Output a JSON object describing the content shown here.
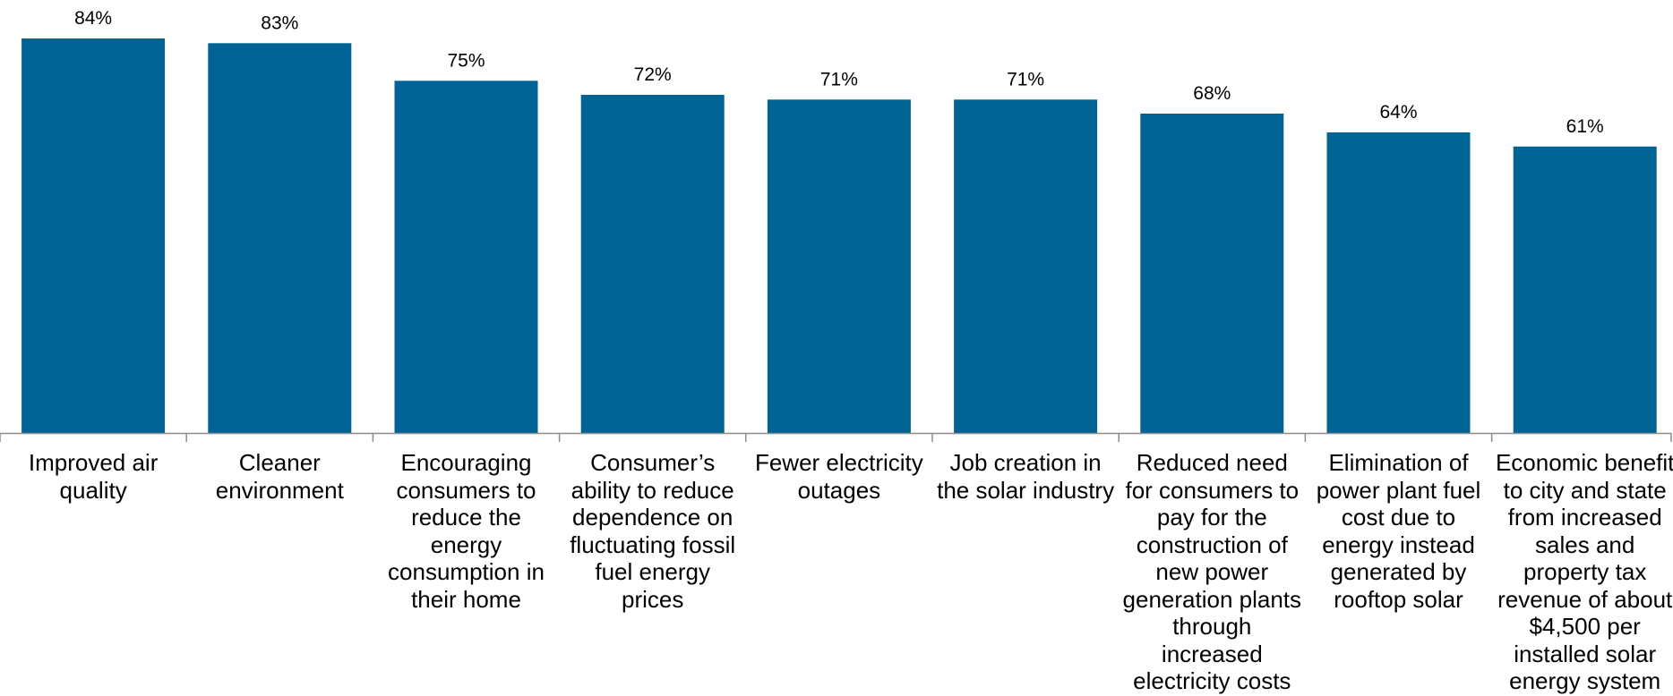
{
  "chart_data": {
    "type": "bar",
    "title": "",
    "xlabel": "",
    "ylabel": "",
    "ylim": [
      0,
      84
    ],
    "grid": false,
    "categories": [
      "Improved air\nquality",
      "Cleaner\nenvironment",
      "Encouraging\nconsumers to\nreduce the\nenergy\nconsumption in\ntheir home",
      "Consumer’s\nability to reduce\ndependence on\nfluctuating fossil\nfuel energy\nprices",
      "Fewer electricity\noutages",
      "Job creation in\nthe solar industry",
      "Reduced need\nfor consumers to\npay for the\nconstruction of\nnew power\ngeneration plants\nthrough\nincreased\nelectricity costs",
      "Elimination of\npower plant fuel\ncost due to\nenergy instead\ngenerated by\nrooftop solar",
      "Economic benefit\nto city and state\nfrom increased\nsales and\nproperty tax\nrevenue of about\n$4,500 per\ninstalled solar\nenergy system"
    ],
    "values": [
      84,
      83,
      75,
      72,
      71,
      71,
      68,
      64,
      61
    ],
    "data_labels": [
      "84%",
      "83%",
      "75%",
      "72%",
      "71%",
      "71%",
      "68%",
      "64%",
      "61%"
    ],
    "colors": {
      "bar": "#006394",
      "axis": "#8c8c8c"
    }
  }
}
